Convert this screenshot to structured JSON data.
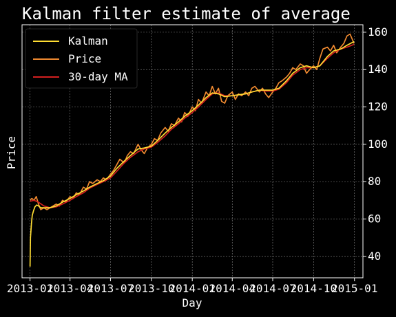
{
  "chart_data": {
    "type": "line",
    "title": "Kalman filter estimate of average",
    "xlabel": "Day",
    "ylabel": "Price",
    "x_range": [
      "2012-12-14",
      "2015-01-20"
    ],
    "ylim": [
      28.5,
      164
    ],
    "x_ticks": [
      "2013-01",
      "2013-04",
      "2013-07",
      "2013-10",
      "2014-01",
      "2014-04",
      "2014-07",
      "2014-10",
      "2015-01"
    ],
    "y_ticks": [
      40,
      60,
      80,
      100,
      120,
      140,
      160
    ],
    "y_axis_side": "right",
    "grid": true,
    "legend": "top-left",
    "series": [
      {
        "name": "Kalman",
        "color": "#ffdd33",
        "points": [
          [
            "2013-01-01",
            34.5
          ],
          [
            "2013-01-02",
            50
          ],
          [
            "2013-01-04",
            57
          ],
          [
            "2013-01-06",
            62
          ],
          [
            "2013-01-09",
            64.5
          ],
          [
            "2013-01-12",
            66.5
          ],
          [
            "2013-01-16",
            67.5
          ],
          [
            "2013-01-20",
            67
          ],
          [
            "2013-01-25",
            66
          ],
          [
            "2013-02-01",
            66
          ],
          [
            "2013-02-15",
            66
          ],
          [
            "2013-03-01",
            67
          ],
          [
            "2013-03-15",
            69
          ],
          [
            "2013-04-01",
            71
          ],
          [
            "2013-04-15",
            73
          ],
          [
            "2013-05-01",
            75
          ],
          [
            "2013-05-15",
            77
          ],
          [
            "2013-06-01",
            79
          ],
          [
            "2013-06-15",
            80.5
          ],
          [
            "2013-07-01",
            83
          ],
          [
            "2013-07-15",
            87
          ],
          [
            "2013-08-01",
            91
          ],
          [
            "2013-08-15",
            94
          ],
          [
            "2013-09-01",
            97.5
          ],
          [
            "2013-09-15",
            98
          ],
          [
            "2013-10-01",
            99
          ],
          [
            "2013-10-15",
            102
          ],
          [
            "2013-11-01",
            106
          ],
          [
            "2013-11-15",
            109
          ],
          [
            "2013-12-01",
            112
          ],
          [
            "2013-12-15",
            115
          ],
          [
            "2014-01-01",
            118
          ],
          [
            "2014-01-15",
            121
          ],
          [
            "2014-02-01",
            125
          ],
          [
            "2014-02-15",
            127.5
          ],
          [
            "2014-03-01",
            127
          ],
          [
            "2014-03-15",
            125.5
          ],
          [
            "2014-04-01",
            126
          ],
          [
            "2014-04-15",
            126.5
          ],
          [
            "2014-05-01",
            127
          ],
          [
            "2014-05-15",
            128
          ],
          [
            "2014-06-01",
            129
          ],
          [
            "2014-06-15",
            129
          ],
          [
            "2014-07-01",
            129
          ],
          [
            "2014-07-15",
            130
          ],
          [
            "2014-08-01",
            134
          ],
          [
            "2014-08-15",
            138
          ],
          [
            "2014-09-01",
            141
          ],
          [
            "2014-09-15",
            142
          ],
          [
            "2014-10-01",
            141
          ],
          [
            "2014-10-15",
            142
          ],
          [
            "2014-11-01",
            147
          ],
          [
            "2014-11-15",
            150
          ],
          [
            "2014-12-01",
            151
          ],
          [
            "2014-12-15",
            153
          ],
          [
            "2014-12-31",
            155
          ]
        ]
      },
      {
        "name": "Price",
        "color": "#f08a30",
        "points": [
          [
            "2013-01-01",
            70
          ],
          [
            "2013-01-05",
            71
          ],
          [
            "2013-01-10",
            70
          ],
          [
            "2013-01-15",
            72
          ],
          [
            "2013-01-20",
            68
          ],
          [
            "2013-01-25",
            65
          ],
          [
            "2013-02-01",
            66
          ],
          [
            "2013-02-08",
            65
          ],
          [
            "2013-02-15",
            66
          ],
          [
            "2013-02-22",
            67
          ],
          [
            "2013-03-01",
            68
          ],
          [
            "2013-03-08",
            67
          ],
          [
            "2013-03-15",
            70
          ],
          [
            "2013-03-22",
            69
          ],
          [
            "2013-04-01",
            72
          ],
          [
            "2013-04-08",
            71
          ],
          [
            "2013-04-15",
            74
          ],
          [
            "2013-04-22",
            73
          ],
          [
            "2013-05-01",
            77
          ],
          [
            "2013-05-08",
            76
          ],
          [
            "2013-05-15",
            80
          ],
          [
            "2013-05-22",
            79
          ],
          [
            "2013-06-01",
            81
          ],
          [
            "2013-06-08",
            80
          ],
          [
            "2013-06-15",
            82
          ],
          [
            "2013-06-22",
            81
          ],
          [
            "2013-07-01",
            84
          ],
          [
            "2013-07-08",
            86
          ],
          [
            "2013-07-15",
            89
          ],
          [
            "2013-07-22",
            92
          ],
          [
            "2013-08-01",
            90
          ],
          [
            "2013-08-08",
            94
          ],
          [
            "2013-08-15",
            96
          ],
          [
            "2013-08-22",
            95
          ],
          [
            "2013-09-01",
            100
          ],
          [
            "2013-09-08",
            97
          ],
          [
            "2013-09-15",
            95
          ],
          [
            "2013-09-22",
            98
          ],
          [
            "2013-10-01",
            100
          ],
          [
            "2013-10-08",
            103
          ],
          [
            "2013-10-15",
            102
          ],
          [
            "2013-10-22",
            106
          ],
          [
            "2013-11-01",
            109
          ],
          [
            "2013-11-08",
            107
          ],
          [
            "2013-11-15",
            111
          ],
          [
            "2013-11-22",
            110
          ],
          [
            "2013-12-01",
            114
          ],
          [
            "2013-12-08",
            112
          ],
          [
            "2013-12-15",
            117
          ],
          [
            "2013-12-22",
            115
          ],
          [
            "2014-01-01",
            120
          ],
          [
            "2014-01-08",
            118
          ],
          [
            "2014-01-15",
            124
          ],
          [
            "2014-01-22",
            122
          ],
          [
            "2014-02-01",
            128
          ],
          [
            "2014-02-08",
            126
          ],
          [
            "2014-02-15",
            131
          ],
          [
            "2014-02-22",
            127
          ],
          [
            "2014-03-01",
            130
          ],
          [
            "2014-03-08",
            123
          ],
          [
            "2014-03-15",
            122
          ],
          [
            "2014-03-22",
            126
          ],
          [
            "2014-04-01",
            128
          ],
          [
            "2014-04-08",
            124
          ],
          [
            "2014-04-15",
            127
          ],
          [
            "2014-04-22",
            126
          ],
          [
            "2014-05-01",
            128
          ],
          [
            "2014-05-08",
            126
          ],
          [
            "2014-05-15",
            130
          ],
          [
            "2014-05-22",
            131
          ],
          [
            "2014-06-01",
            128
          ],
          [
            "2014-06-08",
            130
          ],
          [
            "2014-06-15",
            127
          ],
          [
            "2014-06-22",
            125
          ],
          [
            "2014-07-01",
            128
          ],
          [
            "2014-07-08",
            130
          ],
          [
            "2014-07-15",
            133
          ],
          [
            "2014-07-22",
            134
          ],
          [
            "2014-08-01",
            136
          ],
          [
            "2014-08-08",
            138
          ],
          [
            "2014-08-15",
            141
          ],
          [
            "2014-08-22",
            140
          ],
          [
            "2014-09-01",
            143
          ],
          [
            "2014-09-08",
            142
          ],
          [
            "2014-09-15",
            138
          ],
          [
            "2014-09-22",
            140
          ],
          [
            "2014-10-01",
            142
          ],
          [
            "2014-10-08",
            140
          ],
          [
            "2014-10-15",
            146
          ],
          [
            "2014-10-22",
            151
          ],
          [
            "2014-11-01",
            152
          ],
          [
            "2014-11-08",
            150
          ],
          [
            "2014-11-15",
            153
          ],
          [
            "2014-11-22",
            149
          ],
          [
            "2014-12-01",
            152
          ],
          [
            "2014-12-08",
            154
          ],
          [
            "2014-12-15",
            158
          ],
          [
            "2014-12-22",
            159
          ],
          [
            "2014-12-31",
            154
          ]
        ]
      },
      {
        "name": "30-day MA",
        "color": "#d42020",
        "points": [
          [
            "2013-01-01",
            69.5
          ],
          [
            "2013-01-10",
            70
          ],
          [
            "2013-01-20",
            69
          ],
          [
            "2013-02-01",
            67
          ],
          [
            "2013-02-15",
            66
          ],
          [
            "2013-03-01",
            66.5
          ],
          [
            "2013-03-15",
            68
          ],
          [
            "2013-04-01",
            70
          ],
          [
            "2013-04-15",
            72
          ],
          [
            "2013-05-01",
            74
          ],
          [
            "2013-05-15",
            76.5
          ],
          [
            "2013-06-01",
            78.5
          ],
          [
            "2013-06-15",
            80
          ],
          [
            "2013-07-01",
            82
          ],
          [
            "2013-07-15",
            85.5
          ],
          [
            "2013-08-01",
            90
          ],
          [
            "2013-08-15",
            93
          ],
          [
            "2013-09-01",
            96
          ],
          [
            "2013-09-15",
            97.5
          ],
          [
            "2013-10-01",
            98.5
          ],
          [
            "2013-10-15",
            101
          ],
          [
            "2013-11-01",
            104.5
          ],
          [
            "2013-11-15",
            108
          ],
          [
            "2013-12-01",
            111
          ],
          [
            "2013-12-15",
            114
          ],
          [
            "2014-01-01",
            117
          ],
          [
            "2014-01-15",
            120
          ],
          [
            "2014-02-01",
            124
          ],
          [
            "2014-02-15",
            127
          ],
          [
            "2014-03-01",
            127.5
          ],
          [
            "2014-03-15",
            126
          ],
          [
            "2014-04-01",
            126
          ],
          [
            "2014-04-15",
            126.5
          ],
          [
            "2014-05-01",
            127
          ],
          [
            "2014-05-15",
            128
          ],
          [
            "2014-06-01",
            129
          ],
          [
            "2014-06-15",
            128.5
          ],
          [
            "2014-07-01",
            128.5
          ],
          [
            "2014-07-15",
            129.5
          ],
          [
            "2014-08-01",
            133
          ],
          [
            "2014-08-15",
            137
          ],
          [
            "2014-09-01",
            140
          ],
          [
            "2014-09-15",
            141
          ],
          [
            "2014-10-01",
            141
          ],
          [
            "2014-10-15",
            142
          ],
          [
            "2014-11-01",
            146
          ],
          [
            "2014-11-15",
            149
          ],
          [
            "2014-12-01",
            151
          ],
          [
            "2014-12-15",
            152
          ],
          [
            "2014-12-31",
            153.5
          ]
        ]
      }
    ]
  }
}
